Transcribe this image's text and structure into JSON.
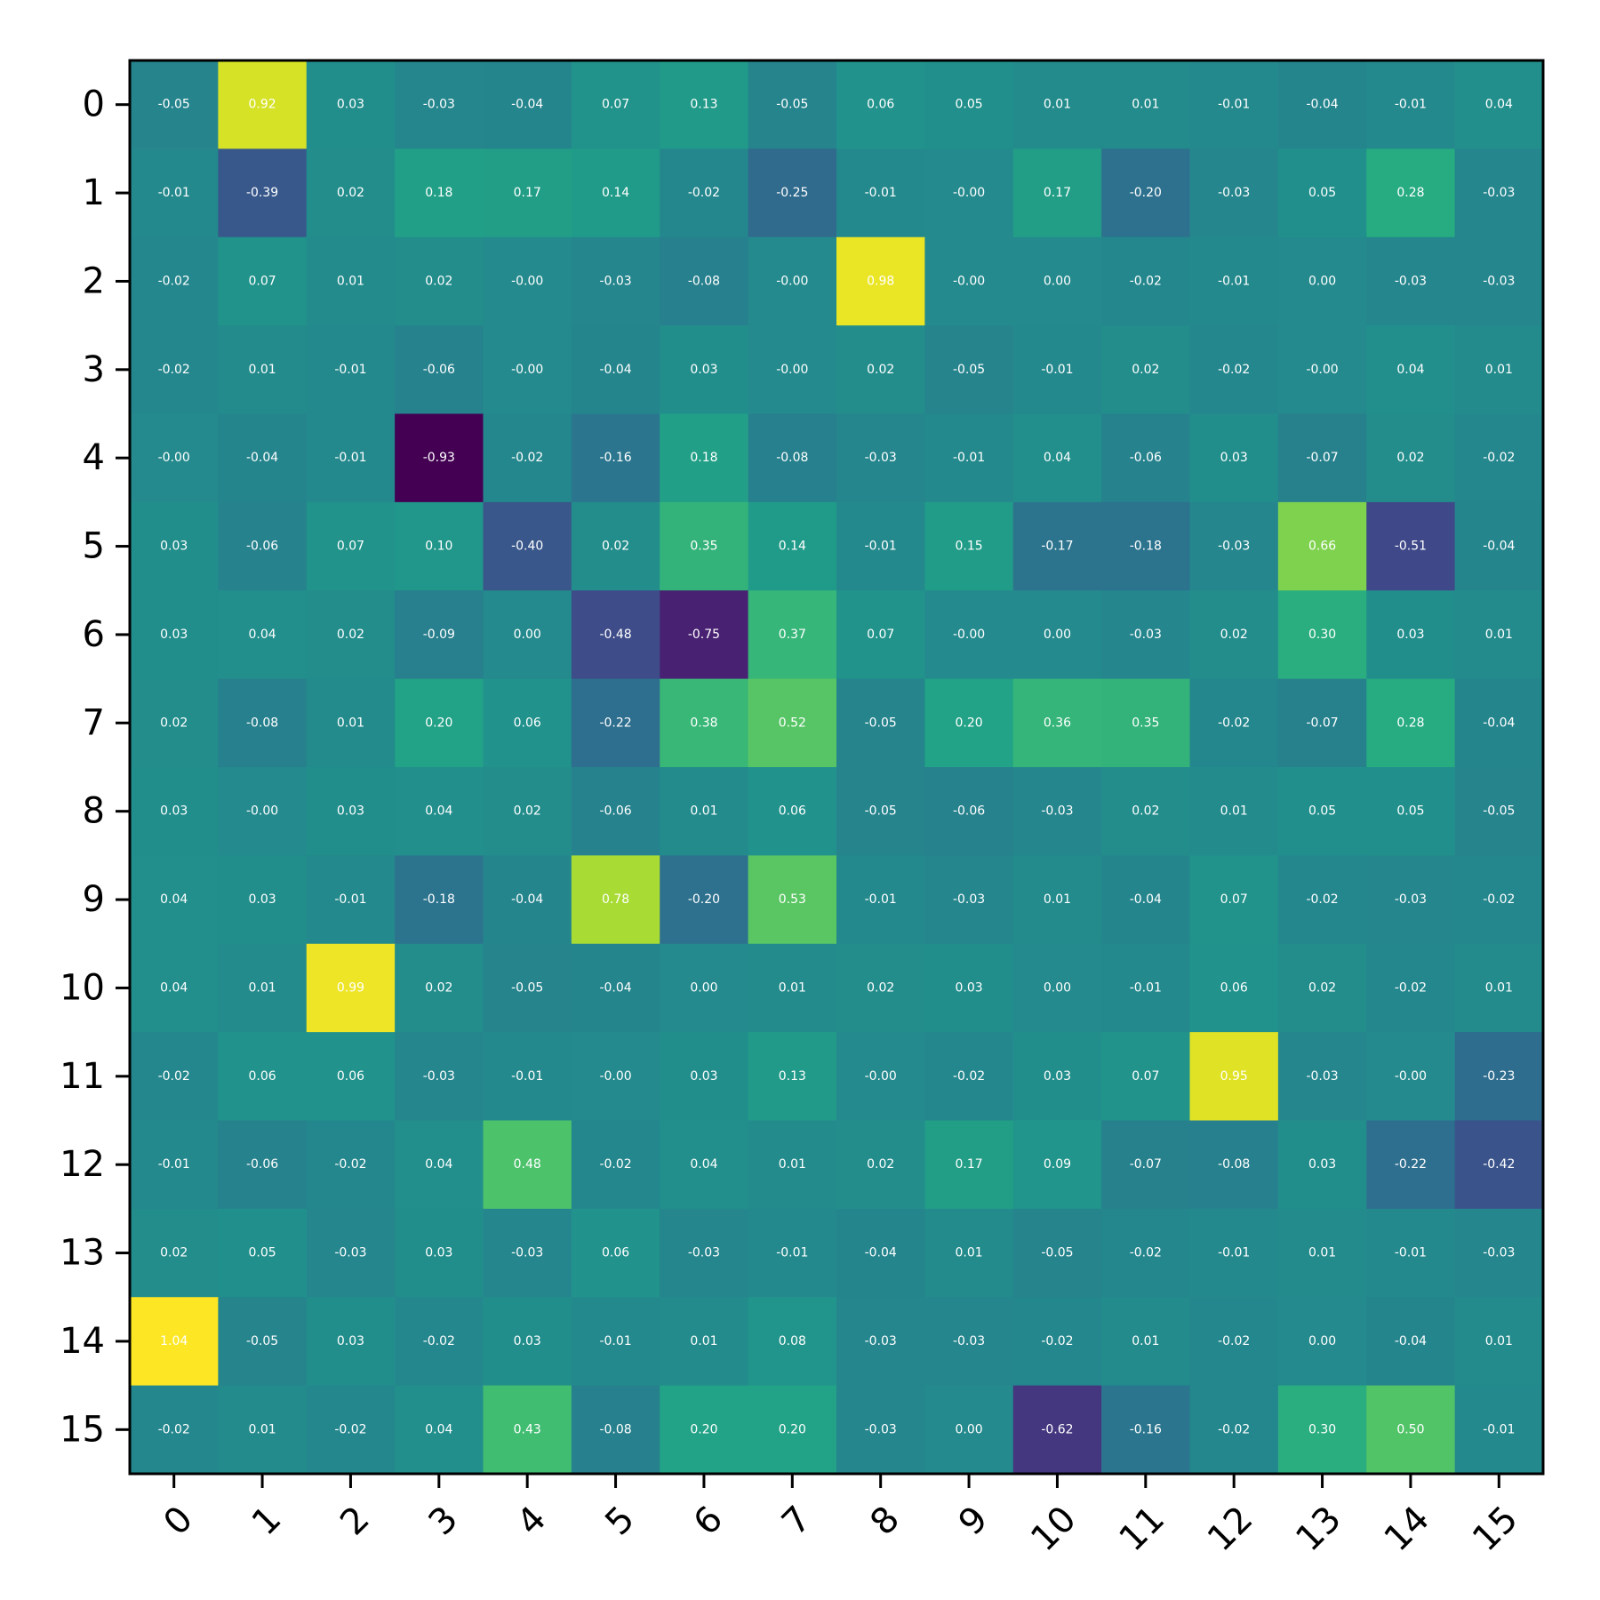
{
  "chart_data": {
    "type": "heatmap",
    "colormap": "viridis",
    "color_range": [
      -0.93,
      1.04
    ],
    "x_tick_labels": [
      "0",
      "1",
      "2",
      "3",
      "4",
      "5",
      "6",
      "7",
      "8",
      "9",
      "10",
      "11",
      "12",
      "13",
      "14",
      "15"
    ],
    "y_tick_labels": [
      "0",
      "1",
      "2",
      "3",
      "4",
      "5",
      "6",
      "7",
      "8",
      "9",
      "10",
      "11",
      "12",
      "13",
      "14",
      "15"
    ],
    "grid": false,
    "values": [
      [
        -0.05,
        0.92,
        0.03,
        -0.03,
        -0.04,
        0.07,
        0.13,
        -0.05,
        0.06,
        0.05,
        0.01,
        0.01,
        -0.01,
        -0.04,
        -0.01,
        0.04
      ],
      [
        -0.01,
        -0.39,
        0.02,
        0.18,
        0.17,
        0.14,
        -0.02,
        -0.25,
        -0.01,
        -0.0,
        0.17,
        -0.2,
        -0.03,
        0.05,
        0.28,
        -0.03
      ],
      [
        -0.02,
        0.07,
        0.01,
        0.02,
        -0.0,
        -0.03,
        -0.08,
        -0.0,
        0.98,
        -0.0,
        0.0,
        -0.02,
        -0.01,
        0.0,
        -0.03,
        -0.03
      ],
      [
        -0.02,
        0.01,
        -0.01,
        -0.06,
        -0.0,
        -0.04,
        0.03,
        -0.0,
        0.02,
        -0.05,
        -0.01,
        0.02,
        -0.02,
        -0.0,
        0.04,
        0.01
      ],
      [
        -0.0,
        -0.04,
        -0.01,
        -0.93,
        -0.02,
        -0.16,
        0.18,
        -0.08,
        -0.03,
        -0.01,
        0.04,
        -0.06,
        0.03,
        -0.07,
        0.02,
        -0.02
      ],
      [
        0.03,
        -0.06,
        0.07,
        0.1,
        -0.4,
        0.02,
        0.35,
        0.14,
        -0.01,
        0.15,
        -0.17,
        -0.18,
        -0.03,
        0.66,
        -0.51,
        -0.04
      ],
      [
        0.03,
        0.04,
        0.02,
        -0.09,
        0.0,
        -0.48,
        -0.75,
        0.37,
        0.07,
        -0.0,
        0.0,
        -0.03,
        0.02,
        0.3,
        0.03,
        0.01
      ],
      [
        0.02,
        -0.08,
        0.01,
        0.2,
        0.06,
        -0.22,
        0.38,
        0.52,
        -0.05,
        0.2,
        0.36,
        0.35,
        -0.02,
        -0.07,
        0.28,
        -0.04
      ],
      [
        0.03,
        -0.0,
        0.03,
        0.04,
        0.02,
        -0.06,
        0.01,
        0.06,
        -0.05,
        -0.06,
        -0.03,
        0.02,
        0.01,
        0.05,
        0.05,
        -0.05
      ],
      [
        0.04,
        0.03,
        -0.01,
        -0.18,
        -0.04,
        0.78,
        -0.2,
        0.53,
        -0.01,
        -0.03,
        0.01,
        -0.04,
        0.07,
        -0.02,
        -0.03,
        -0.02
      ],
      [
        0.04,
        0.01,
        0.99,
        0.02,
        -0.05,
        -0.04,
        0.0,
        0.01,
        0.02,
        0.03,
        0.0,
        -0.01,
        0.06,
        0.02,
        -0.02,
        0.01
      ],
      [
        -0.02,
        0.06,
        0.06,
        -0.03,
        -0.01,
        -0.0,
        0.03,
        0.13,
        -0.0,
        -0.02,
        0.03,
        0.07,
        0.95,
        -0.03,
        -0.0,
        -0.23
      ],
      [
        -0.01,
        -0.06,
        -0.02,
        0.04,
        0.48,
        -0.02,
        0.04,
        0.01,
        0.02,
        0.17,
        0.09,
        -0.07,
        -0.08,
        0.03,
        -0.22,
        -0.42
      ],
      [
        0.02,
        0.05,
        -0.03,
        0.03,
        -0.03,
        0.06,
        -0.03,
        -0.01,
        -0.04,
        0.01,
        -0.05,
        -0.02,
        -0.01,
        0.01,
        -0.01,
        -0.03
      ],
      [
        1.04,
        -0.05,
        0.03,
        -0.02,
        0.03,
        -0.01,
        0.01,
        0.08,
        -0.03,
        -0.03,
        -0.02,
        0.01,
        -0.02,
        0.0,
        -0.04,
        0.01
      ],
      [
        -0.02,
        0.01,
        -0.02,
        0.04,
        0.43,
        -0.08,
        0.2,
        0.2,
        -0.03,
        0.0,
        -0.62,
        -0.16,
        -0.02,
        0.3,
        0.5,
        -0.01
      ]
    ]
  }
}
